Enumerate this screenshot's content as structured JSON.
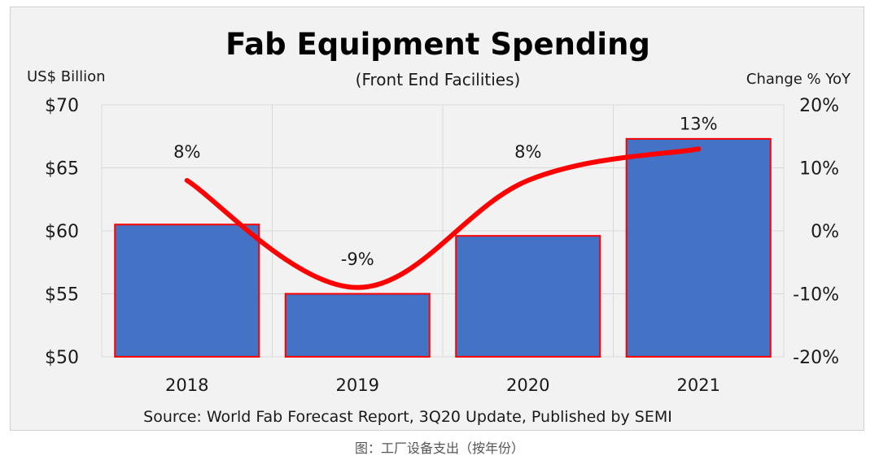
{
  "chart_data": {
    "type": "bar",
    "title": "Fab Equipment Spending",
    "subtitle": "(Front End Facilities)",
    "ylabel_left": "US$ Billion",
    "ylabel_right": "Change % YoY",
    "categories": [
      "2018",
      "2019",
      "2020",
      "2021"
    ],
    "series": [
      {
        "type": "bar",
        "values": [
          60.5,
          55.0,
          59.6,
          67.3
        ],
        "axis": "left",
        "color": "#4472c4",
        "edge_color": "#ff0000"
      },
      {
        "type": "line",
        "values": [
          8,
          -9,
          8,
          13
        ],
        "axis": "right",
        "color": "#ff0000",
        "data_labels": [
          "8%",
          "-9%",
          "8%",
          "13%"
        ]
      }
    ],
    "ylim_left": [
      50,
      70
    ],
    "ylim_right": [
      -20,
      20
    ],
    "yticks_left": [
      "$50",
      "$55",
      "$60",
      "$65",
      "$70"
    ],
    "yticks_right": [
      "-20%",
      "-10%",
      "0%",
      "10%",
      "20%"
    ],
    "grid": true,
    "source": "Source: World Fab Forecast Report, 3Q20 Update, Published by SEMI"
  },
  "caption": "图：工厂设备支出（按年份）"
}
